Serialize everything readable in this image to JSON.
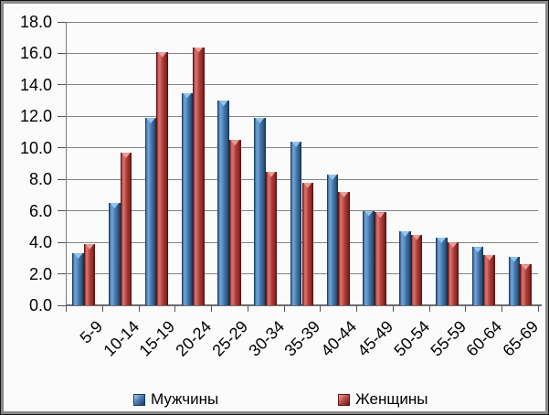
{
  "chart_data": {
    "type": "bar",
    "title": "",
    "xlabel": "",
    "ylabel": "",
    "categories": [
      "5-9",
      "10-14",
      "15-19",
      "20-24",
      "25-29",
      "30-34",
      "35-39",
      "40-44",
      "45-49",
      "50-54",
      "55-59",
      "60-64",
      "65-69"
    ],
    "series": [
      {
        "name": "Мужчины",
        "color": "#4f81bd",
        "values": [
          3.3,
          6.5,
          11.9,
          13.5,
          13.0,
          11.9,
          10.4,
          8.3,
          6.0,
          4.7,
          4.3,
          3.7,
          3.1
        ]
      },
      {
        "name": "Женщины",
        "color": "#c0504d",
        "values": [
          3.9,
          9.7,
          16.1,
          16.4,
          10.5,
          8.5,
          7.8,
          7.2,
          5.9,
          4.5,
          4.0,
          3.2,
          2.6
        ]
      }
    ],
    "ylim": [
      0,
      18
    ],
    "ytick_step": 2,
    "ytick_labels": [
      "0.0",
      "2.0",
      "4.0",
      "6.0",
      "8.0",
      "10.0",
      "12.0",
      "14.0",
      "16.0",
      "18.0"
    ],
    "grid": true,
    "legend_position": "bottom",
    "x_label_rotation_deg": -45
  },
  "colors": {
    "men_bar": "#4f81bd",
    "women_bar": "#c0504d",
    "gridline": "#848484",
    "axis": "#6e6e6e",
    "background": "#fbfbfb",
    "frame": "#8a8a8a",
    "text": "#000000"
  }
}
